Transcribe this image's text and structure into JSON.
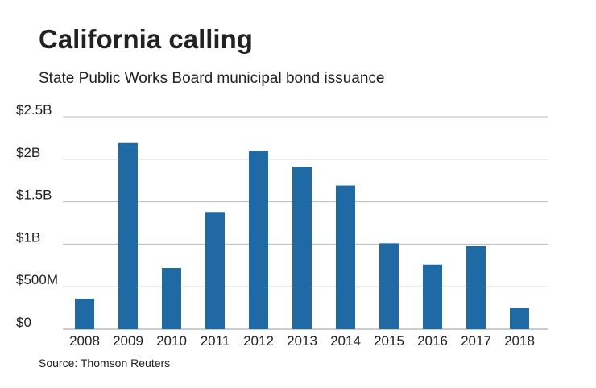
{
  "chart_data": {
    "type": "bar",
    "title": "California calling",
    "subtitle": "State Public Works Board municipal bond issuance",
    "source": "Source: Thomson Reuters",
    "categories": [
      "2008",
      "2009",
      "2010",
      "2011",
      "2012",
      "2013",
      "2014",
      "2015",
      "2016",
      "2017",
      "2018"
    ],
    "values": [
      360000000,
      2190000000,
      720000000,
      1380000000,
      2100000000,
      1910000000,
      1690000000,
      1010000000,
      760000000,
      980000000,
      250000000
    ],
    "color": "#1f6aa5",
    "ylim": [
      0,
      2500000000
    ],
    "yticks": [
      {
        "value": 0,
        "label": "$0"
      },
      {
        "value": 500000000,
        "label": "$500M"
      },
      {
        "value": 1000000000,
        "label": "$1B"
      },
      {
        "value": 1500000000,
        "label": "$1.5B"
      },
      {
        "value": 2000000000,
        "label": "$2B"
      },
      {
        "value": 2500000000,
        "label": "$2.5B"
      }
    ],
    "grid": true
  }
}
